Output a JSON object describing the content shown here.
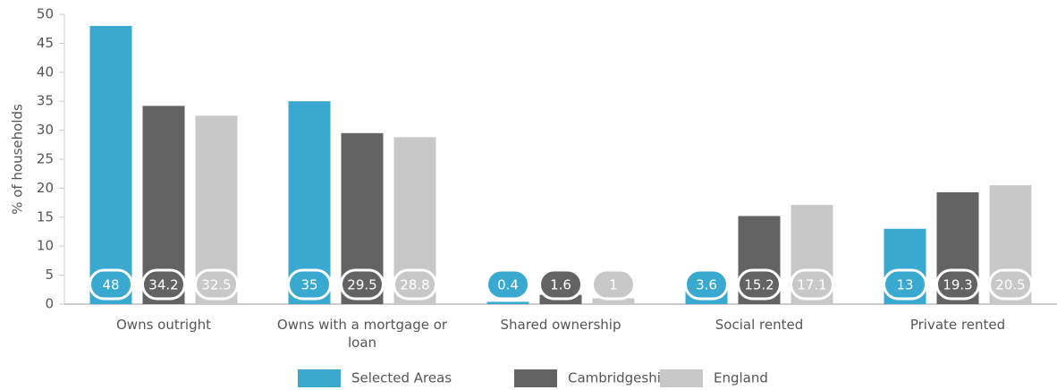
{
  "chart_data": {
    "type": "bar",
    "y_label": "% of households",
    "categories": [
      "Owns outright",
      "Owns with a mortgage or loan",
      "Shared ownership",
      "Social rented",
      "Private rented"
    ],
    "series": [
      {
        "name": "Selected Areas",
        "color": "#3aa9d0",
        "values": [
          48,
          35,
          0.4,
          3.6,
          13
        ]
      },
      {
        "name": "Cambridgeshire",
        "color": "#636363",
        "values": [
          34.2,
          29.5,
          1.6,
          15.2,
          19.3
        ]
      },
      {
        "name": "England",
        "color": "#c8c8c8",
        "values": [
          32.5,
          28.8,
          1,
          17.1,
          20.5
        ]
      }
    ],
    "ylim": [
      0,
      50
    ],
    "yticks": [
      0,
      5,
      10,
      15,
      20,
      25,
      30,
      35,
      40,
      45,
      50
    ],
    "grid": false,
    "legend": "bottom"
  }
}
